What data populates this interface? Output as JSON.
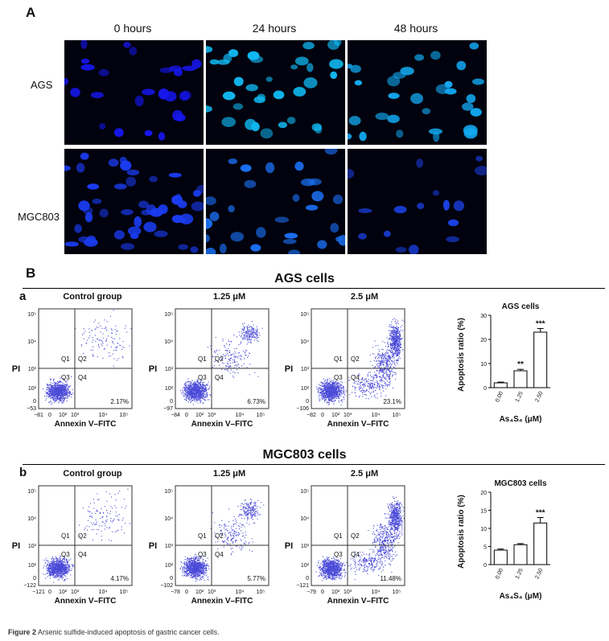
{
  "figure": {
    "panel_a_letter": "A",
    "panel_b_letter": "B",
    "time_labels": [
      "0 hours",
      "24 hours",
      "48 hours"
    ],
    "row_labels": [
      "AGS",
      "MGC803"
    ],
    "sections": [
      {
        "title": "AGS cells",
        "letter": "a",
        "plots": [
          {
            "title": "Control group",
            "pct": "2.17%",
            "x_min_tick": "−81",
            "y_min_tick": "−53"
          },
          {
            "title": "1.25 μM",
            "pct": "6.73%",
            "x_min_tick": "−84",
            "y_min_tick": "−97"
          },
          {
            "title": "2.5 μM",
            "pct": "23.1%",
            "x_min_tick": "−82",
            "y_min_tick": "−106"
          }
        ]
      },
      {
        "title": "MGC803 cells",
        "letter": "b",
        "plots": [
          {
            "title": "Control group",
            "pct": "4.17%",
            "x_min_tick": "−121",
            "y_min_tick": "−122"
          },
          {
            "title": "1.25 μM",
            "pct": "5.77%",
            "x_min_tick": "−78",
            "y_min_tick": "−102"
          },
          {
            "title": "2.5 μM",
            "pct": "11.48%",
            "x_min_tick": "−79",
            "y_min_tick": "−121"
          }
        ]
      }
    ],
    "flow_axes": {
      "x_label": "Annexin V–FITC",
      "y_label": "PI",
      "quadrants": [
        "Q1",
        "Q2",
        "Q3",
        "Q4"
      ],
      "x_ticks": [
        "0",
        "10²",
        "10³",
        "10⁴",
        "10⁵"
      ],
      "y_ticks": [
        "10⁵",
        "10⁴",
        "10³",
        "10²",
        "0"
      ]
    },
    "caption_label": "Figure 2",
    "caption_text": "Arsenic sulfide-induced apoptosis of gastric cancer cells."
  },
  "chart_data": [
    {
      "type": "bar",
      "title": "AGS cells",
      "xlabel": "As₄S₄ (μM)",
      "ylabel": "Apoptosis ratio (%)",
      "categories": [
        "0.00",
        "1.25",
        "2.50"
      ],
      "values": [
        2,
        7,
        23
      ],
      "errors": [
        0.3,
        0.6,
        1.5
      ],
      "annotations": [
        "",
        "**",
        "***"
      ],
      "ylim": [
        0,
        30
      ],
      "yticks": [
        0,
        10,
        20,
        30
      ]
    },
    {
      "type": "bar",
      "title": "MGC803 cells",
      "xlabel": "As₄S₄ (μM)",
      "ylabel": "Apoptosis ratio (%)",
      "categories": [
        "0.00",
        "1.25",
        "2.50"
      ],
      "values": [
        4,
        5.5,
        11.5
      ],
      "errors": [
        0.3,
        0.3,
        1.5
      ],
      "annotations": [
        "",
        "",
        "***"
      ],
      "ylim": [
        0,
        20
      ],
      "yticks": [
        0,
        5,
        10,
        15,
        20
      ]
    }
  ]
}
